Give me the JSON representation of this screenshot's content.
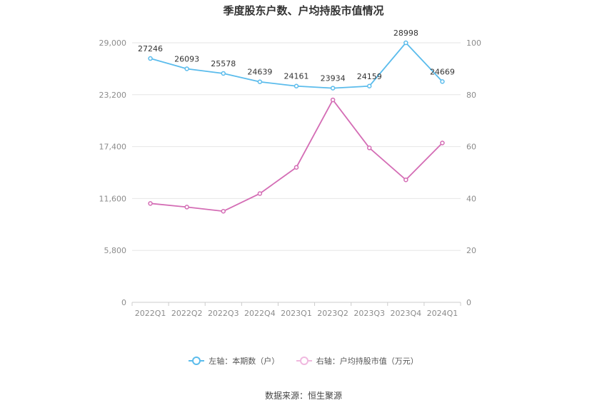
{
  "title": "季度股东户数、户均持股市值情况",
  "source": "数据来源：恒生聚源",
  "colors": {
    "left_series": "#5bbcec",
    "right_series": "#d46db5",
    "grid": "#e6e6e6"
  },
  "chart_data": {
    "type": "line",
    "categories": [
      "2022Q1",
      "2022Q2",
      "2022Q3",
      "2022Q4",
      "2023Q1",
      "2023Q2",
      "2023Q3",
      "2023Q4",
      "2024Q1"
    ],
    "left_axis": {
      "ylim": [
        0,
        29000
      ],
      "ticks": [
        0,
        5800,
        11600,
        17400,
        23200,
        29000
      ],
      "tick_labels": [
        "0",
        "5,800",
        "11,600",
        "17,400",
        "23,200",
        "29,000"
      ]
    },
    "right_axis": {
      "ylim": [
        0,
        100
      ],
      "ticks": [
        0,
        20,
        40,
        60,
        80,
        100
      ],
      "tick_labels": [
        "0",
        "20",
        "40",
        "60",
        "80",
        "100"
      ]
    },
    "grid": true,
    "legend_position": "bottom",
    "series": [
      {
        "name": "左轴：本期数（户）",
        "axis": "left",
        "color": "#5bbcec",
        "values": [
          27246,
          26093,
          25578,
          24639,
          24161,
          23934,
          24159,
          28998,
          24669
        ],
        "labels": [
          "27246",
          "26093",
          "25578",
          "24639",
          "24161",
          "23934",
          "24159",
          "28998",
          "24669"
        ]
      },
      {
        "name": "右轴：户均持股市值（万元）",
        "axis": "right",
        "color": "#d46db5",
        "values": [
          38.1,
          36.7,
          35.1,
          41.9,
          52.0,
          78.0,
          59.5,
          47.2,
          61.4
        ]
      }
    ]
  }
}
